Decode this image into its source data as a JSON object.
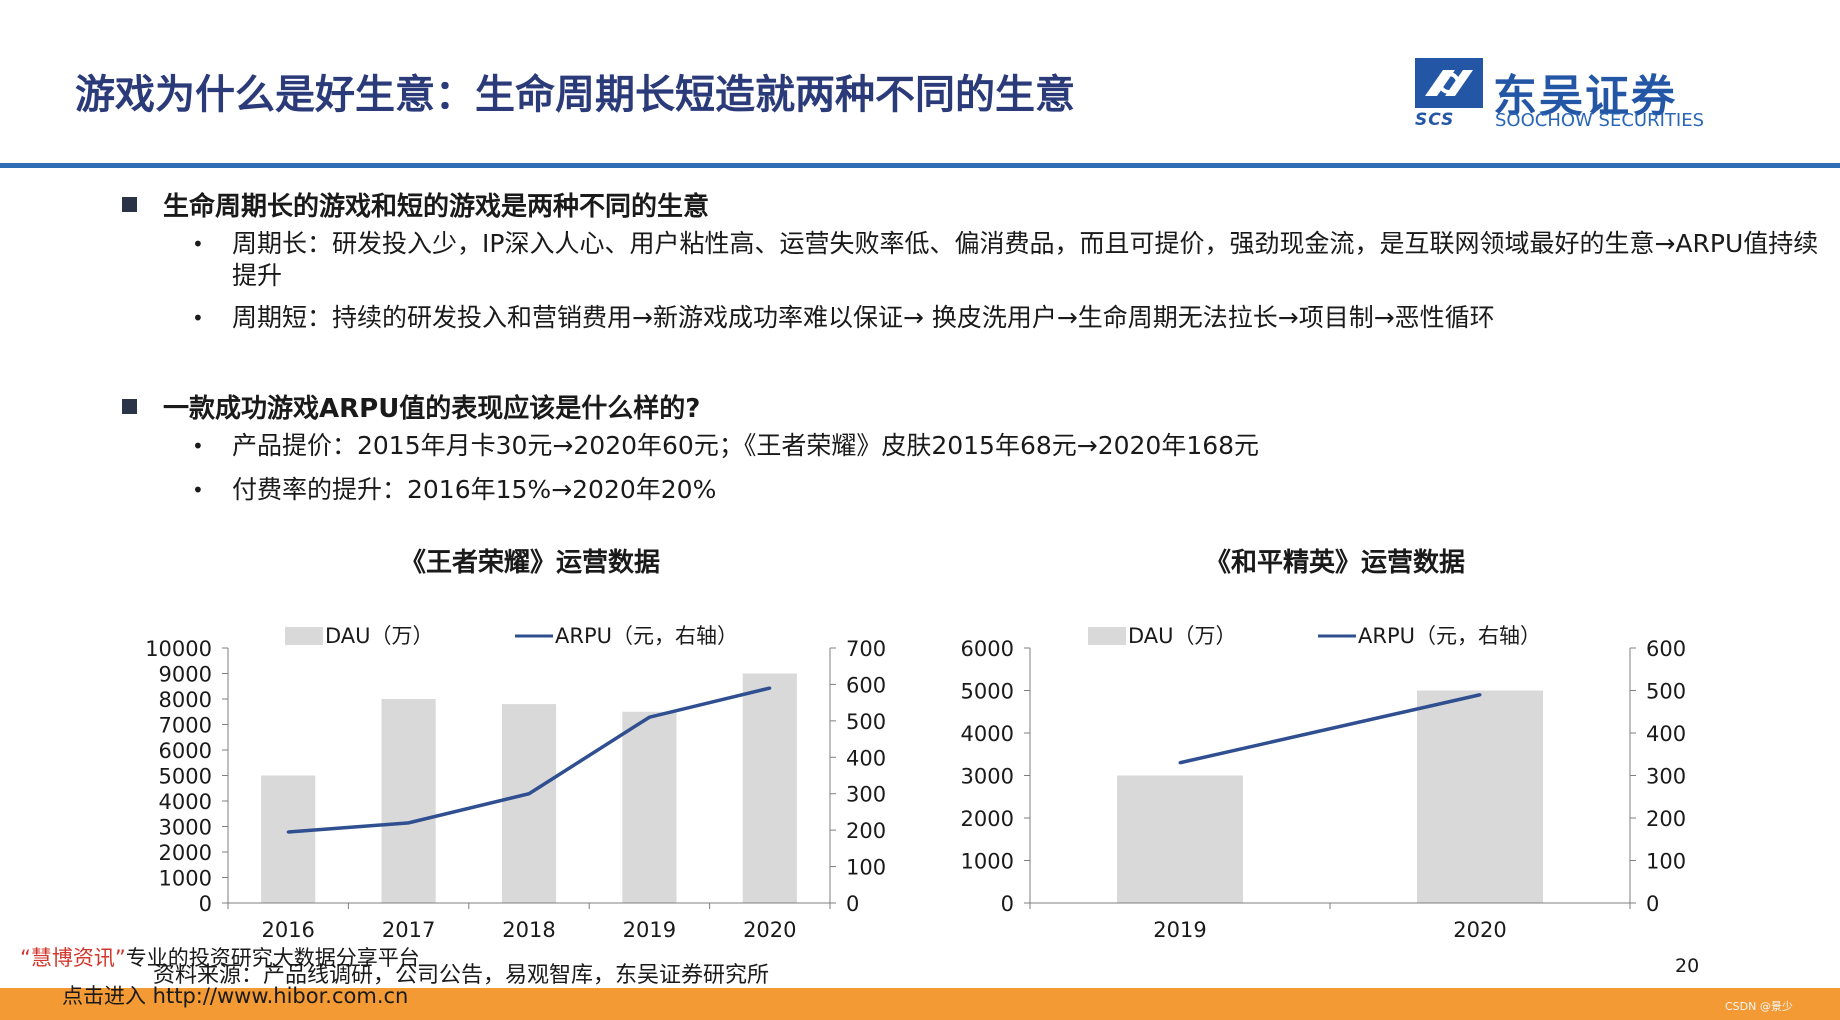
{
  "title": "游戏为什么是好生意：生命周期长短造就两种不同的生意",
  "logo": {
    "cn": "东吴证券",
    "en": "SOOCHOW SECURITIES",
    "abbr": "SCS"
  },
  "sections": [
    {
      "heading": "生命周期长的游戏和短的游戏是两种不同的生意",
      "items": [
        "周期长：研发投入少，IP深入人心、用户粘性高、运营失败率低、偏消费品，而且可提价，强劲现金流，是互联网领域最好的生意→ARPU值持续提升",
        "周期短：持续的研发投入和营销费用→新游戏成功率难以保证→ 换皮洗用户→生命周期无法拉长→项目制→恶性循环"
      ]
    },
    {
      "heading": "一款成功游戏ARPU值的表现应该是什么样的?",
      "items": [
        "产品提价：2015年月卡30元→2020年60元；《王者荣耀》皮肤2015年68元→2020年168元",
        "付费率的提升：2016年15%→2020年20%"
      ]
    }
  ],
  "chart_data": [
    {
      "type": "bar+line",
      "title": "《王者荣耀》运营数据",
      "legend": [
        "DAU（万）",
        "ARPU（元，右轴）"
      ],
      "categories": [
        "2016",
        "2017",
        "2018",
        "2019",
        "2020"
      ],
      "series": [
        {
          "name": "DAU（万）",
          "type": "bar",
          "axis": "left",
          "values": [
            5000,
            8000,
            7800,
            7500,
            9000
          ]
        },
        {
          "name": "ARPU（元，右轴）",
          "type": "line",
          "axis": "right",
          "values": [
            195,
            220,
            300,
            510,
            590
          ]
        }
      ],
      "y_left": {
        "min": 0,
        "max": 10000,
        "ticks": [
          "0",
          "1000",
          "2000",
          "3000",
          "4000",
          "5000",
          "6000",
          "7000",
          "8000",
          "9000",
          "10000"
        ]
      },
      "y_right": {
        "min": 0,
        "max": 700,
        "ticks": [
          "0",
          "100",
          "200",
          "300",
          "400",
          "500",
          "600",
          "700"
        ]
      },
      "colors": {
        "bar": "#d9d9d9",
        "line": "#2f4f91"
      }
    },
    {
      "type": "bar+line",
      "title": "《和平精英》运营数据",
      "legend": [
        "DAU（万）",
        "ARPU（元，右轴）"
      ],
      "categories": [
        "2019",
        "2020"
      ],
      "series": [
        {
          "name": "DAU（万）",
          "type": "bar",
          "axis": "left",
          "values": [
            3000,
            5000
          ]
        },
        {
          "name": "ARPU（元，右轴）",
          "type": "line",
          "axis": "right",
          "values": [
            330,
            490
          ]
        }
      ],
      "y_left": {
        "min": 0,
        "max": 6000,
        "ticks": [
          "0",
          "1000",
          "2000",
          "3000",
          "4000",
          "5000",
          "6000"
        ]
      },
      "y_right": {
        "min": 0,
        "max": 600,
        "ticks": [
          "0",
          "100",
          "200",
          "300",
          "400",
          "500",
          "600"
        ]
      },
      "colors": {
        "bar": "#d9d9d9",
        "line": "#2f4f91"
      }
    }
  ],
  "source": "资料来源：产品线调研，公司公告，易观智库，东吴证券研究所",
  "page_number": "20",
  "watermark": {
    "brand": "“慧博资讯”",
    "line1_rest": "专业的投资研究大数据分享平台",
    "line2": "点击进入 http://www.hibor.com.cn"
  },
  "csdn_mark": "CSDN @景少"
}
